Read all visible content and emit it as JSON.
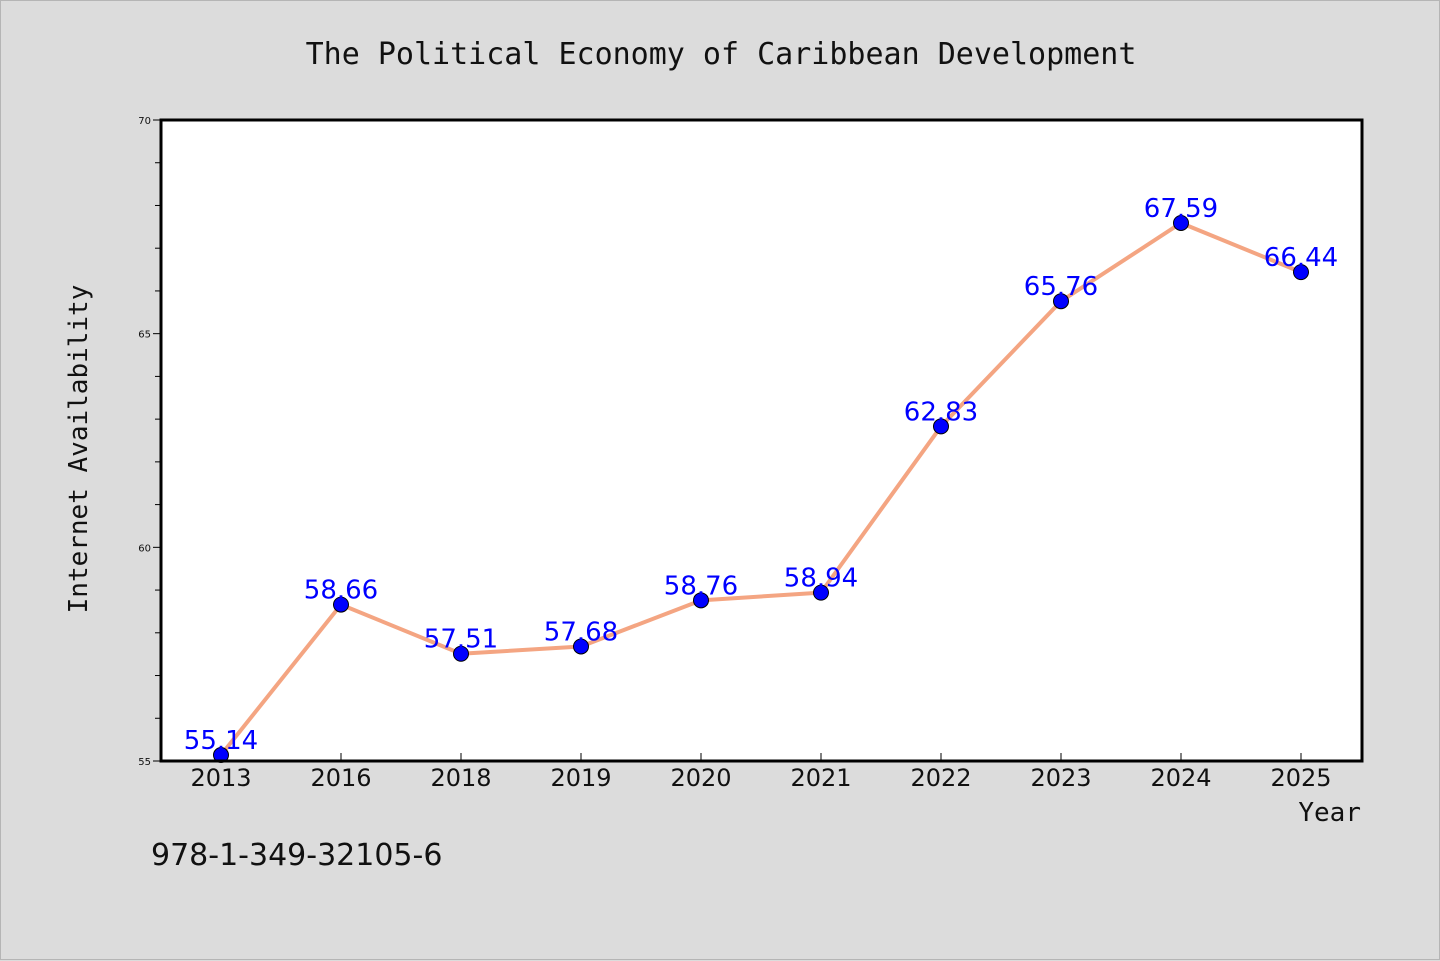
{
  "chart_data": {
    "type": "line",
    "title": "The Political Economy of Caribbean Development",
    "xlabel": "Year",
    "ylabel": "Internet Availability",
    "categories": [
      "2013",
      "2016",
      "2018",
      "2019",
      "2020",
      "2021",
      "2022",
      "2023",
      "2024",
      "2025"
    ],
    "values": [
      55.14,
      58.66,
      57.51,
      57.68,
      58.76,
      58.94,
      62.83,
      65.76,
      67.59,
      66.44
    ],
    "data_labels": [
      "55.14",
      "58.66",
      "57.51",
      "57.68",
      "58.76",
      "58.94",
      "62.83",
      "65.76",
      "67.59",
      "66.44"
    ],
    "ylim": [
      55,
      70
    ],
    "y_major_ticks": [
      55,
      60,
      65,
      70
    ],
    "y_tick_labels": [
      "55",
      "60",
      "65",
      "70"
    ],
    "y_minor_step": 1,
    "grid": false,
    "legend": "none",
    "line_color": "#f4a582",
    "marker_color": "#0000ff",
    "label_color": "#0000ff",
    "plot_background": "#ffffff",
    "figure_background": "#dcdcdc"
  },
  "footer": {
    "isbn": "978-1-349-32105-6"
  }
}
